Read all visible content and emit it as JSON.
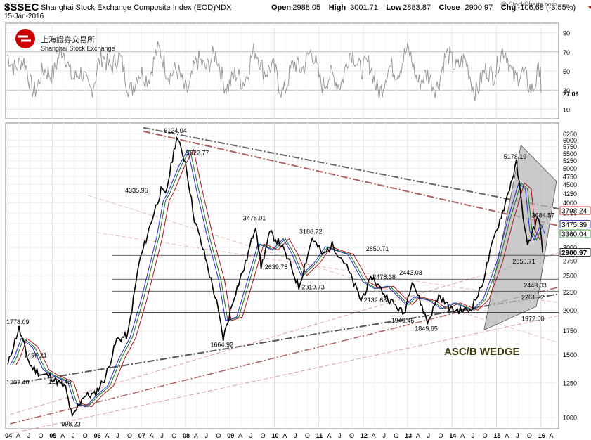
{
  "header": {
    "symbol": "$SSEC",
    "name": "Shanghai Stock Exchange Composite Index (EOD)",
    "exchange": "INDX",
    "date": "15-Jan-2016",
    "watermark": "@ StockCharts.com",
    "ohlc": [
      {
        "label": "Open",
        "value": "2988.05"
      },
      {
        "label": "High",
        "value": "3001.71"
      },
      {
        "label": "Low",
        "value": "2883.87"
      },
      {
        "label": "Close",
        "value": "2900.97"
      },
      {
        "label": "Chg",
        "value": "-106.68 (-3.55%)"
      }
    ]
  },
  "logo": {
    "cn": "上海證券交易所",
    "en": "Shanghai Stock Exchange"
  },
  "colors": {
    "accent": "#cc0000",
    "price": "#000000",
    "rsi": "#999999",
    "wedge": "#b8b8b8"
  },
  "chart_data": [
    {
      "type": "line",
      "title": "RSI",
      "ylim": [
        0,
        100
      ],
      "yticks": [
        10,
        30,
        50,
        70,
        90
      ],
      "last_value": "27.09"
    },
    {
      "type": "line",
      "scale": "log",
      "ylim": [
        930,
        6700
      ],
      "yticks": [
        "1000",
        "1250",
        "1500",
        "1750",
        "2000",
        "2250",
        "2500",
        "2750",
        "3000",
        "3250",
        "3500",
        "3750",
        "4000",
        "4250",
        "4500",
        "4750",
        "5000",
        "5250",
        "5500",
        "5750",
        "6000",
        "6250"
      ],
      "x_ticks": [
        "04",
        "A",
        "J",
        "O",
        "05",
        "A",
        "J",
        "O",
        "06",
        "A",
        "J",
        "O",
        "07",
        "A",
        "J",
        "O",
        "08",
        "A",
        "J",
        "O",
        "09",
        "A",
        "J",
        "O",
        "10",
        "A",
        "J",
        "O",
        "11",
        "A",
        "J",
        "O",
        "12",
        "A",
        "J",
        "O",
        "13",
        "A",
        "J",
        "O",
        "14",
        "A",
        "J",
        "O",
        "15",
        "A",
        "J",
        "O",
        "16",
        "A"
      ],
      "x_years": [
        "04",
        "05",
        "06",
        "07",
        "08",
        "09",
        "10",
        "11",
        "12",
        "13",
        "14",
        "15",
        "16"
      ],
      "price_series": [
        {
          "date": 2004.0,
          "value": 1400
        },
        {
          "date": 2004.1,
          "value": 1560
        },
        {
          "date": 2004.25,
          "value": 1778.09
        },
        {
          "date": 2004.5,
          "value": 1400
        },
        {
          "date": 2004.75,
          "value": 1320
        },
        {
          "date": 2004.95,
          "value": 1307.4
        },
        {
          "date": 2005.3,
          "value": 1210
        },
        {
          "date": 2005.45,
          "value": 998.23
        },
        {
          "date": 2005.7,
          "value": 1150
        },
        {
          "date": 2005.95,
          "value": 1160
        },
        {
          "date": 2006.2,
          "value": 1300
        },
        {
          "date": 2006.45,
          "value": 1650
        },
        {
          "date": 2006.7,
          "value": 1700
        },
        {
          "date": 2006.95,
          "value": 2700
        },
        {
          "date": 2007.3,
          "value": 3800
        },
        {
          "date": 2007.45,
          "value": 4335.96
        },
        {
          "date": 2007.55,
          "value": 4200
        },
        {
          "date": 2007.8,
          "value": 6124.04
        },
        {
          "date": 2008.0,
          "value": 5200
        },
        {
          "date": 2008.2,
          "value": 3600
        },
        {
          "date": 2008.45,
          "value": 2800
        },
        {
          "date": 2008.7,
          "value": 2100
        },
        {
          "date": 2008.85,
          "value": 1664.92
        },
        {
          "date": 2009.1,
          "value": 2200
        },
        {
          "date": 2009.35,
          "value": 2700
        },
        {
          "date": 2009.58,
          "value": 3478.01
        },
        {
          "date": 2009.7,
          "value": 2639.75
        },
        {
          "date": 2009.9,
          "value": 3300
        },
        {
          "date": 2010.15,
          "value": 3050
        },
        {
          "date": 2010.35,
          "value": 2700
        },
        {
          "date": 2010.55,
          "value": 2319.73
        },
        {
          "date": 2010.85,
          "value": 3186.72
        },
        {
          "date": 2011.1,
          "value": 2850
        },
        {
          "date": 2011.3,
          "value": 3050
        },
        {
          "date": 2011.6,
          "value": 2700
        },
        {
          "date": 2011.95,
          "value": 2132.63
        },
        {
          "date": 2012.2,
          "value": 2478.38
        },
        {
          "date": 2012.5,
          "value": 2200
        },
        {
          "date": 2012.92,
          "value": 1949.46
        },
        {
          "date": 2013.1,
          "value": 2443.03
        },
        {
          "date": 2013.45,
          "value": 1849.65
        },
        {
          "date": 2013.7,
          "value": 2200
        },
        {
          "date": 2014.0,
          "value": 2000
        },
        {
          "date": 2014.4,
          "value": 2000
        },
        {
          "date": 2014.65,
          "value": 2300
        },
        {
          "date": 2014.95,
          "value": 3200
        },
        {
          "date": 2015.2,
          "value": 4000
        },
        {
          "date": 2015.45,
          "value": 5178.19
        },
        {
          "date": 2015.6,
          "value": 3700
        },
        {
          "date": 2015.7,
          "value": 3000
        },
        {
          "date": 2015.8,
          "value": 3300
        },
        {
          "date": 2015.95,
          "value": 3684.57
        },
        {
          "date": 2016.04,
          "value": 2900.97
        }
      ],
      "annotations": [
        {
          "text": "1778.09",
          "date": 2004.15,
          "value": 1778.09,
          "pos": "above"
        },
        {
          "text": "1496.21",
          "date": 2004.3,
          "value": 1496.21,
          "pos": "right"
        },
        {
          "text": "1307.40",
          "date": 2003.98,
          "value": 1307.4,
          "pos": "below"
        },
        {
          "text": "1259.43",
          "date": 2004.85,
          "value": 1259.43,
          "pos": "right"
        },
        {
          "text": "998.23",
          "date": 2005.45,
          "value": 998.23,
          "pos": "below"
        },
        {
          "text": "4335.96",
          "date": 2007.28,
          "value": 4335.96,
          "pos": "left"
        },
        {
          "text": "6124.04",
          "date": 2007.8,
          "value": 6124.04,
          "pos": "above"
        },
        {
          "text": "5522.77",
          "date": 2007.95,
          "value": 5522.77,
          "pos": "right"
        },
        {
          "text": "1664.92",
          "date": 2008.85,
          "value": 1664.92,
          "pos": "below"
        },
        {
          "text": "3478.01",
          "date": 2009.58,
          "value": 3478.01,
          "pos": "above"
        },
        {
          "text": "2639.75",
          "date": 2009.72,
          "value": 2639.75,
          "pos": "right"
        },
        {
          "text": "2319.73",
          "date": 2010.55,
          "value": 2319.73,
          "pos": "right"
        },
        {
          "text": "3186.72",
          "date": 2010.85,
          "value": 3186.72,
          "pos": "above"
        },
        {
          "text": "2850.71",
          "date": 2012.35,
          "value": 2850.71,
          "pos": "above"
        },
        {
          "text": "2478.38",
          "date": 2012.15,
          "value": 2478.38,
          "pos": "right"
        },
        {
          "text": "2132.63",
          "date": 2011.95,
          "value": 2132.63,
          "pos": "right"
        },
        {
          "text": "2443.03",
          "date": 2013.1,
          "value": 2443.03,
          "pos": "above"
        },
        {
          "text": "1949.46",
          "date": 2012.92,
          "value": 1949.46,
          "pos": "below"
        },
        {
          "text": "1849.65",
          "date": 2013.45,
          "value": 1849.65,
          "pos": "below"
        },
        {
          "text": "5178.19",
          "date": 2015.45,
          "value": 5178.19,
          "pos": "above"
        },
        {
          "text": "3684.57",
          "date": 2015.98,
          "value": 3684.57,
          "pos": "right"
        },
        {
          "text": "2850.71",
          "date": 2015.65,
          "value": 2850.71,
          "pos": "below"
        },
        {
          "text": "2443.03",
          "date": 2015.9,
          "value": 2443.03,
          "pos": "below"
        },
        {
          "text": "2261.72",
          "date": 2015.85,
          "value": 2261.72,
          "pos": "below"
        },
        {
          "text": "1972.00",
          "date": 2015.85,
          "value": 1972.0,
          "pos": "below"
        }
      ],
      "horizontal_levels": [
        2850.71,
        2443.03,
        2261.72,
        1972.0
      ],
      "axis_callouts": [
        {
          "text": "3798.24",
          "value": 3798.24,
          "color": "#cc0000"
        },
        {
          "text": "3475.39",
          "value": 3475.39,
          "color": "#1a1aaa"
        },
        {
          "text": "3360.04",
          "value": 3360.04,
          "color": "#1a7a1a"
        },
        {
          "text": "2900.97",
          "value": 2900.97,
          "color": "#000000"
        }
      ],
      "wedge_label": "ASC/B WEDGE"
    }
  ]
}
